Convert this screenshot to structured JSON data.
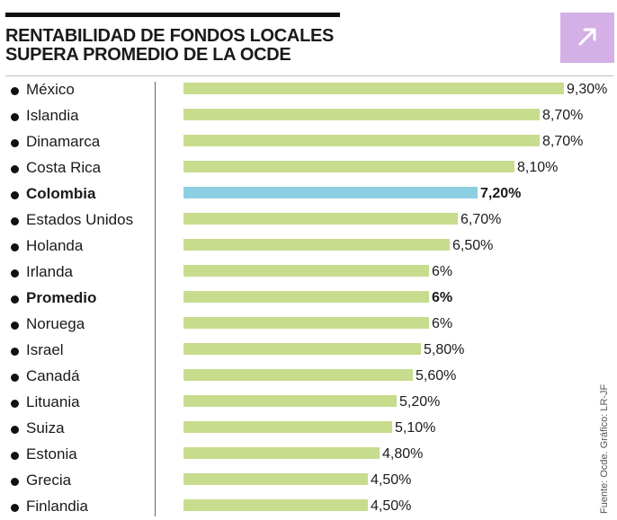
{
  "title_lines": [
    "RENTABILIDAD DE FONDOS LOCALES",
    "SUPERA PROMEDIO DE LA OCDE"
  ],
  "source": "Fuente: Ocde. Gráfico: LR-JF",
  "share_button": {
    "icon": "arrow-up-right-icon"
  },
  "colors": {
    "bar": "#c8dc8e",
    "highlight": "#8ccfe3",
    "button": "#d4b0e6"
  },
  "chart_data": {
    "type": "bar",
    "orientation": "horizontal",
    "categories": [
      "México",
      "Islandia",
      "Dinamarca",
      "Costa Rica",
      "Colombia",
      "Estados Unidos",
      "Holanda",
      "Irlanda",
      "Promedio",
      "Noruega",
      "Israel",
      "Canadá",
      "Lituania",
      "Suiza",
      "Estonia",
      "Grecia",
      "Finlandia"
    ],
    "values": [
      9.3,
      8.7,
      8.7,
      8.1,
      7.2,
      6.7,
      6.5,
      6,
      6,
      6,
      5.8,
      5.6,
      5.2,
      5.1,
      4.8,
      4.5,
      4.5
    ],
    "value_labels": [
      "9,30%",
      "8,70%",
      "8,70%",
      "8,10%",
      "7,20%",
      "6,70%",
      "6,50%",
      "6%",
      "6%",
      "6%",
      "5,80%",
      "5,60%",
      "5,20%",
      "5,10%",
      "4,80%",
      "4,50%",
      "4,50%"
    ],
    "highlighted": [
      "Colombia"
    ],
    "bold": [
      "Colombia",
      "Promedio"
    ],
    "xlim": [
      0,
      9.3
    ],
    "grid": false,
    "title": "RENTABILIDAD DE FONDOS LOCALES SUPERA PROMEDIO DE LA OCDE",
    "xlabel": "",
    "ylabel": ""
  }
}
